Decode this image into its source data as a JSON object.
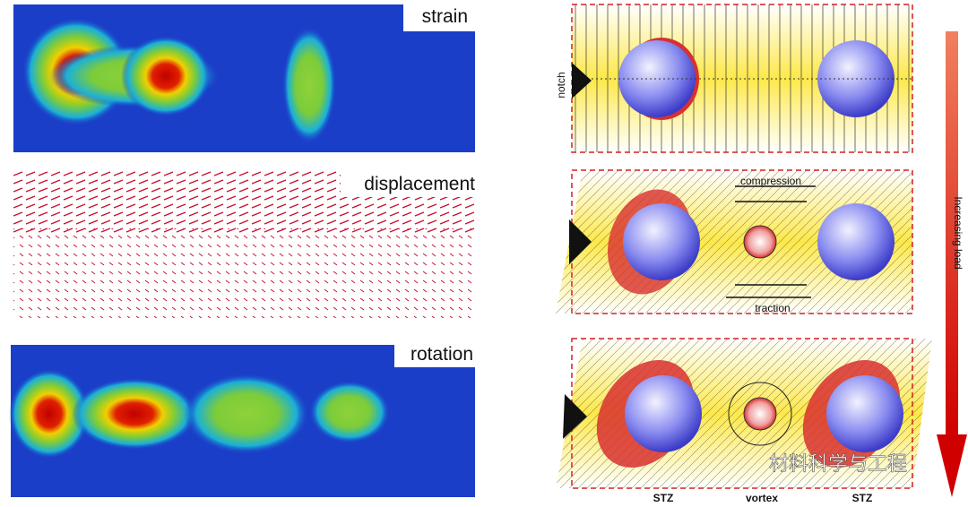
{
  "left_panels": [
    {
      "label": "strain"
    },
    {
      "label": "displacement"
    },
    {
      "label": "rotation"
    }
  ],
  "right_panels": {
    "notch": "notch",
    "compression": "compression",
    "traction": "traction",
    "bottom_labels": [
      "STZ",
      "vortex",
      "STZ"
    ]
  },
  "arrow_label": "Increasing load",
  "watermark": "材料科学与工程"
}
